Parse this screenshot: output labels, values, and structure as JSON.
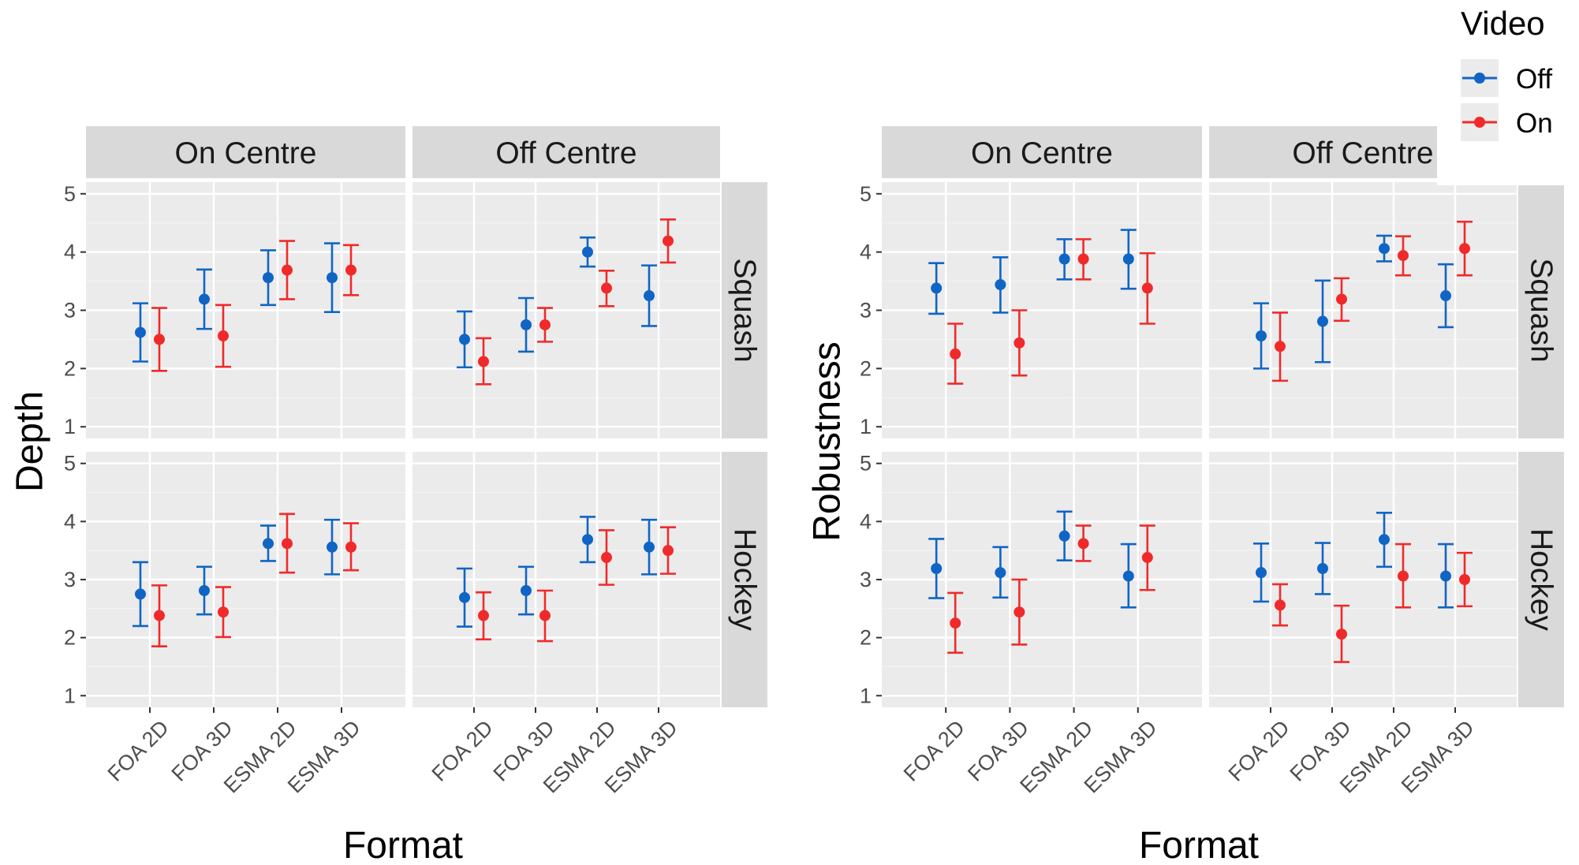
{
  "legend": {
    "title": "Video",
    "entries": [
      {
        "label": "Off",
        "color": "#1065C4"
      },
      {
        "label": "On",
        "color": "#F02A2A"
      }
    ]
  },
  "chart_data": [
    {
      "type": "scatter",
      "subtype": "point-with-error-bars, faceted grid",
      "xlabel": "Format",
      "ylabel": "Depth",
      "ylim": [
        0.8,
        5.2
      ],
      "yticks": [
        1,
        2,
        3,
        4,
        5
      ],
      "categories": [
        "FOA 2D",
        "FOA 3D",
        "ESMA 2D",
        "ESMA 3D"
      ],
      "column_facets": [
        "On Centre",
        "Off Centre"
      ],
      "row_facets": [
        "Squash",
        "Hockey"
      ],
      "grid": true,
      "legend_position": "top-right",
      "panels": [
        {
          "col": "On Centre",
          "row": "Squash",
          "series": [
            {
              "name": "Off",
              "mean": [
                2.62,
                3.19,
                3.56,
                3.56
              ],
              "lower": [
                2.12,
                2.68,
                3.09,
                2.97
              ],
              "upper": [
                3.12,
                3.7,
                4.03,
                4.15
              ]
            },
            {
              "name": "On",
              "mean": [
                2.5,
                2.56,
                3.69,
                3.69
              ],
              "lower": [
                1.96,
                2.03,
                3.19,
                3.26
              ],
              "upper": [
                3.04,
                3.09,
                4.19,
                4.12
              ]
            }
          ]
        },
        {
          "col": "Off Centre",
          "row": "Squash",
          "series": [
            {
              "name": "Off",
              "mean": [
                2.5,
                2.75,
                4.0,
                3.25
              ],
              "lower": [
                2.02,
                2.29,
                3.75,
                2.73
              ],
              "upper": [
                2.98,
                3.21,
                4.25,
                3.77
              ]
            },
            {
              "name": "On",
              "mean": [
                2.12,
                2.75,
                3.38,
                4.19
              ],
              "lower": [
                1.73,
                2.46,
                3.07,
                3.82
              ],
              "upper": [
                2.52,
                3.04,
                3.68,
                4.56
              ]
            }
          ]
        },
        {
          "col": "On Centre",
          "row": "Hockey",
          "series": [
            {
              "name": "Off",
              "mean": [
                2.75,
                2.81,
                3.62,
                3.56
              ],
              "lower": [
                2.2,
                2.4,
                3.32,
                3.09
              ],
              "upper": [
                3.3,
                3.22,
                3.93,
                4.03
              ]
            },
            {
              "name": "On",
              "mean": [
                2.38,
                2.44,
                3.62,
                3.56
              ],
              "lower": [
                1.85,
                2.01,
                3.12,
                3.16
              ],
              "upper": [
                2.9,
                2.87,
                4.13,
                3.97
              ]
            }
          ]
        },
        {
          "col": "Off Centre",
          "row": "Hockey",
          "series": [
            {
              "name": "Off",
              "mean": [
                2.69,
                2.81,
                3.69,
                3.56
              ],
              "lower": [
                2.19,
                2.4,
                3.3,
                3.09
              ],
              "upper": [
                3.19,
                3.22,
                4.08,
                4.03
              ]
            },
            {
              "name": "On",
              "mean": [
                2.38,
                2.38,
                3.38,
                3.5
              ],
              "lower": [
                1.97,
                1.94,
                2.91,
                3.1
              ],
              "upper": [
                2.78,
                2.81,
                3.85,
                3.9
              ]
            }
          ]
        }
      ]
    },
    {
      "type": "scatter",
      "subtype": "point-with-error-bars, faceted grid",
      "xlabel": "Format",
      "ylabel": "Robustness",
      "ylim": [
        0.8,
        5.2
      ],
      "yticks": [
        1,
        2,
        3,
        4,
        5
      ],
      "categories": [
        "FOA 2D",
        "FOA 3D",
        "ESMA 2D",
        "ESMA 3D"
      ],
      "column_facets": [
        "On Centre",
        "Off Centre"
      ],
      "row_facets": [
        "Squash",
        "Hockey"
      ],
      "grid": true,
      "legend_position": "top-right",
      "panels": [
        {
          "col": "On Centre",
          "row": "Squash",
          "series": [
            {
              "name": "Off",
              "mean": [
                3.38,
                3.44,
                3.88,
                3.88
              ],
              "lower": [
                2.94,
                2.96,
                3.53,
                3.37
              ],
              "upper": [
                3.81,
                3.91,
                4.22,
                4.38
              ]
            },
            {
              "name": "On",
              "mean": [
                2.25,
                2.44,
                3.88,
                3.38
              ],
              "lower": [
                1.74,
                1.88,
                3.53,
                2.77
              ],
              "upper": [
                2.77,
                3.0,
                4.22,
                3.98
              ]
            }
          ]
        },
        {
          "col": "Off Centre",
          "row": "Squash",
          "series": [
            {
              "name": "Off",
              "mean": [
                2.56,
                2.81,
                4.06,
                3.25
              ],
              "lower": [
                2.0,
                2.11,
                3.84,
                2.71
              ],
              "upper": [
                3.12,
                3.51,
                4.28,
                3.79
              ]
            },
            {
              "name": "On",
              "mean": [
                2.38,
                3.19,
                3.94,
                4.06
              ],
              "lower": [
                1.79,
                2.82,
                3.6,
                3.6
              ],
              "upper": [
                2.96,
                3.55,
                4.27,
                4.52
              ]
            }
          ]
        },
        {
          "col": "On Centre",
          "row": "Hockey",
          "series": [
            {
              "name": "Off",
              "mean": [
                3.19,
                3.12,
                3.75,
                3.06
              ],
              "lower": [
                2.68,
                2.69,
                3.33,
                2.52
              ],
              "upper": [
                3.7,
                3.56,
                4.17,
                3.61
              ]
            },
            {
              "name": "On",
              "mean": [
                2.25,
                2.44,
                3.62,
                3.38
              ],
              "lower": [
                1.74,
                1.88,
                3.32,
                2.82
              ],
              "upper": [
                2.77,
                3.0,
                3.93,
                3.93
              ]
            }
          ]
        },
        {
          "col": "Off Centre",
          "row": "Hockey",
          "series": [
            {
              "name": "Off",
              "mean": [
                3.12,
                3.19,
                3.69,
                3.06
              ],
              "lower": [
                2.62,
                2.75,
                3.22,
                2.52
              ],
              "upper": [
                3.62,
                3.63,
                4.15,
                3.61
              ]
            },
            {
              "name": "On",
              "mean": [
                2.56,
                2.06,
                3.06,
                3.0
              ],
              "lower": [
                2.21,
                1.58,
                2.52,
                2.54
              ],
              "upper": [
                2.92,
                2.55,
                3.61,
                3.46
              ]
            }
          ]
        }
      ]
    }
  ]
}
